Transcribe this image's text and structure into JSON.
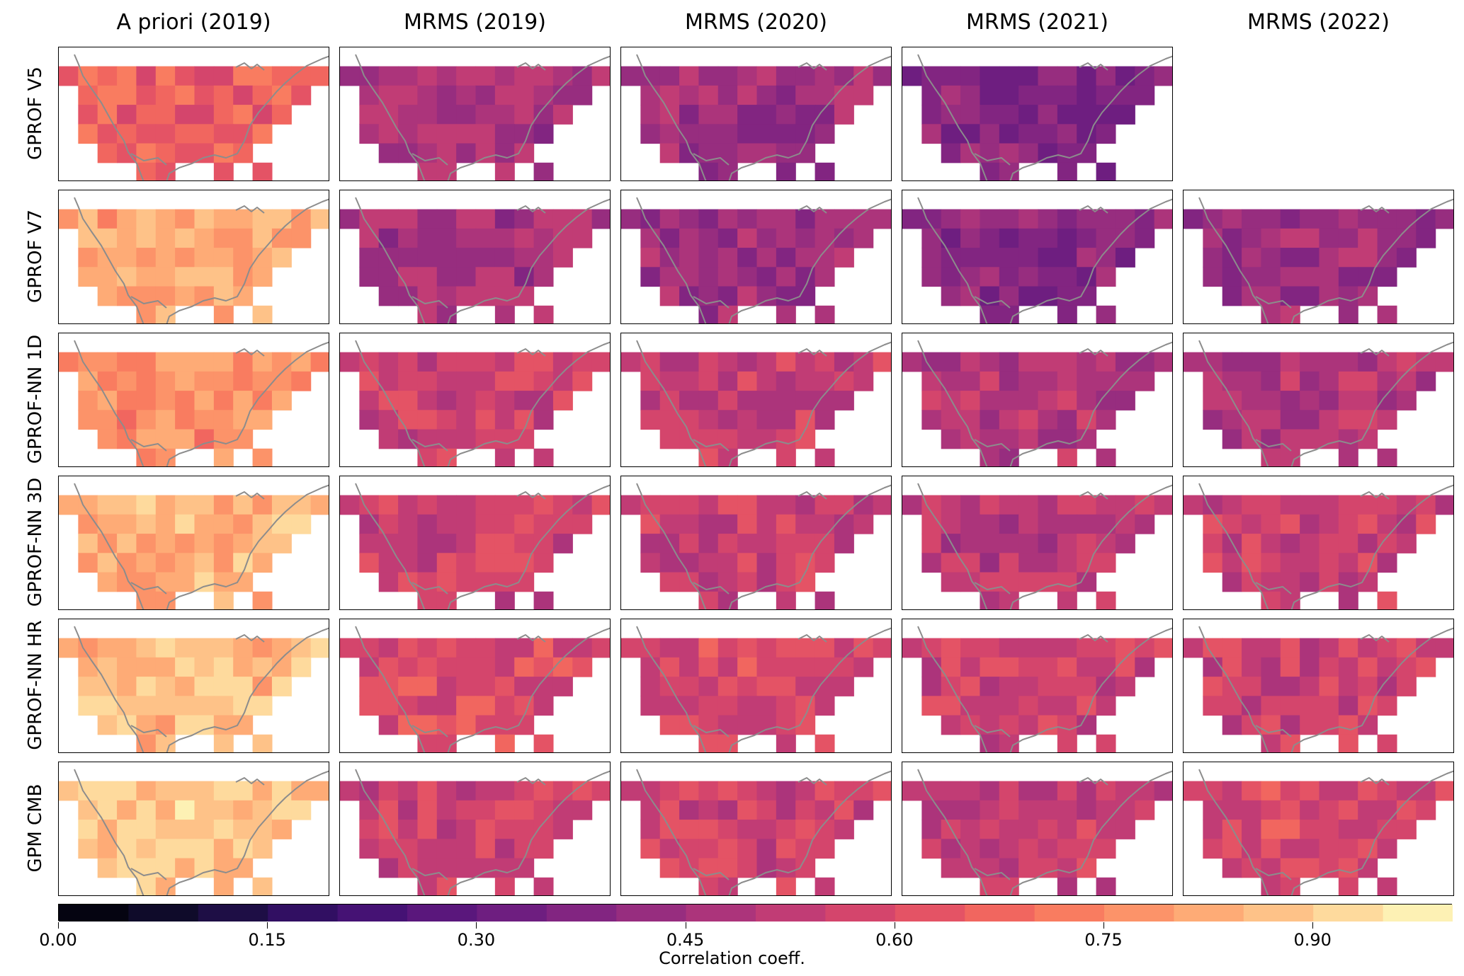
{
  "chart_data": {
    "type": "heatmap",
    "columns": [
      "A priori (2019)",
      "MRMS (2019)",
      "MRMS (2020)",
      "MRMS (2021)",
      "MRMS (2022)"
    ],
    "rows": [
      "GPROF V5",
      "GPROF V7",
      "GPROF-NN 1D",
      "GPROF-NN 3D",
      "GPROF-NN HR",
      "GPM CMB"
    ],
    "missing_panels": [
      [
        0,
        4
      ]
    ],
    "colorbar": {
      "label": "Correlation coeff.",
      "min": 0.0,
      "max": 1.0,
      "step": 0.05,
      "ticks": [
        0.0,
        0.15,
        0.3,
        0.45,
        0.6,
        0.75,
        0.9
      ],
      "tick_labels": [
        "0.00",
        "0.15",
        "0.30",
        "0.45",
        "0.60",
        "0.75",
        "0.90"
      ],
      "colormap": "magma"
    },
    "panel_means": [
      [
        0.66,
        0.47,
        0.45,
        0.38,
        null
      ],
      [
        0.82,
        0.47,
        0.44,
        0.4,
        0.43
      ],
      [
        0.77,
        0.56,
        0.53,
        0.5,
        0.5
      ],
      [
        0.84,
        0.56,
        0.54,
        0.51,
        0.55
      ],
      [
        0.86,
        0.6,
        0.58,
        0.56,
        0.56
      ],
      [
        0.88,
        0.56,
        0.56,
        0.53,
        0.58
      ]
    ],
    "panel_spread": 0.05,
    "coastline_color": "#8c8c8c"
  }
}
